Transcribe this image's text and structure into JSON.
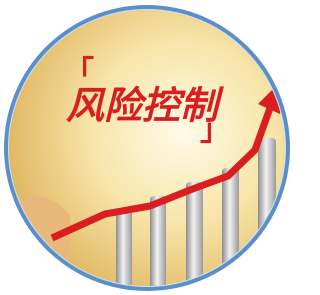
{
  "header": {
    "open_bracket": "「",
    "title": "风险控制",
    "close_bracket": "」"
  }
}
